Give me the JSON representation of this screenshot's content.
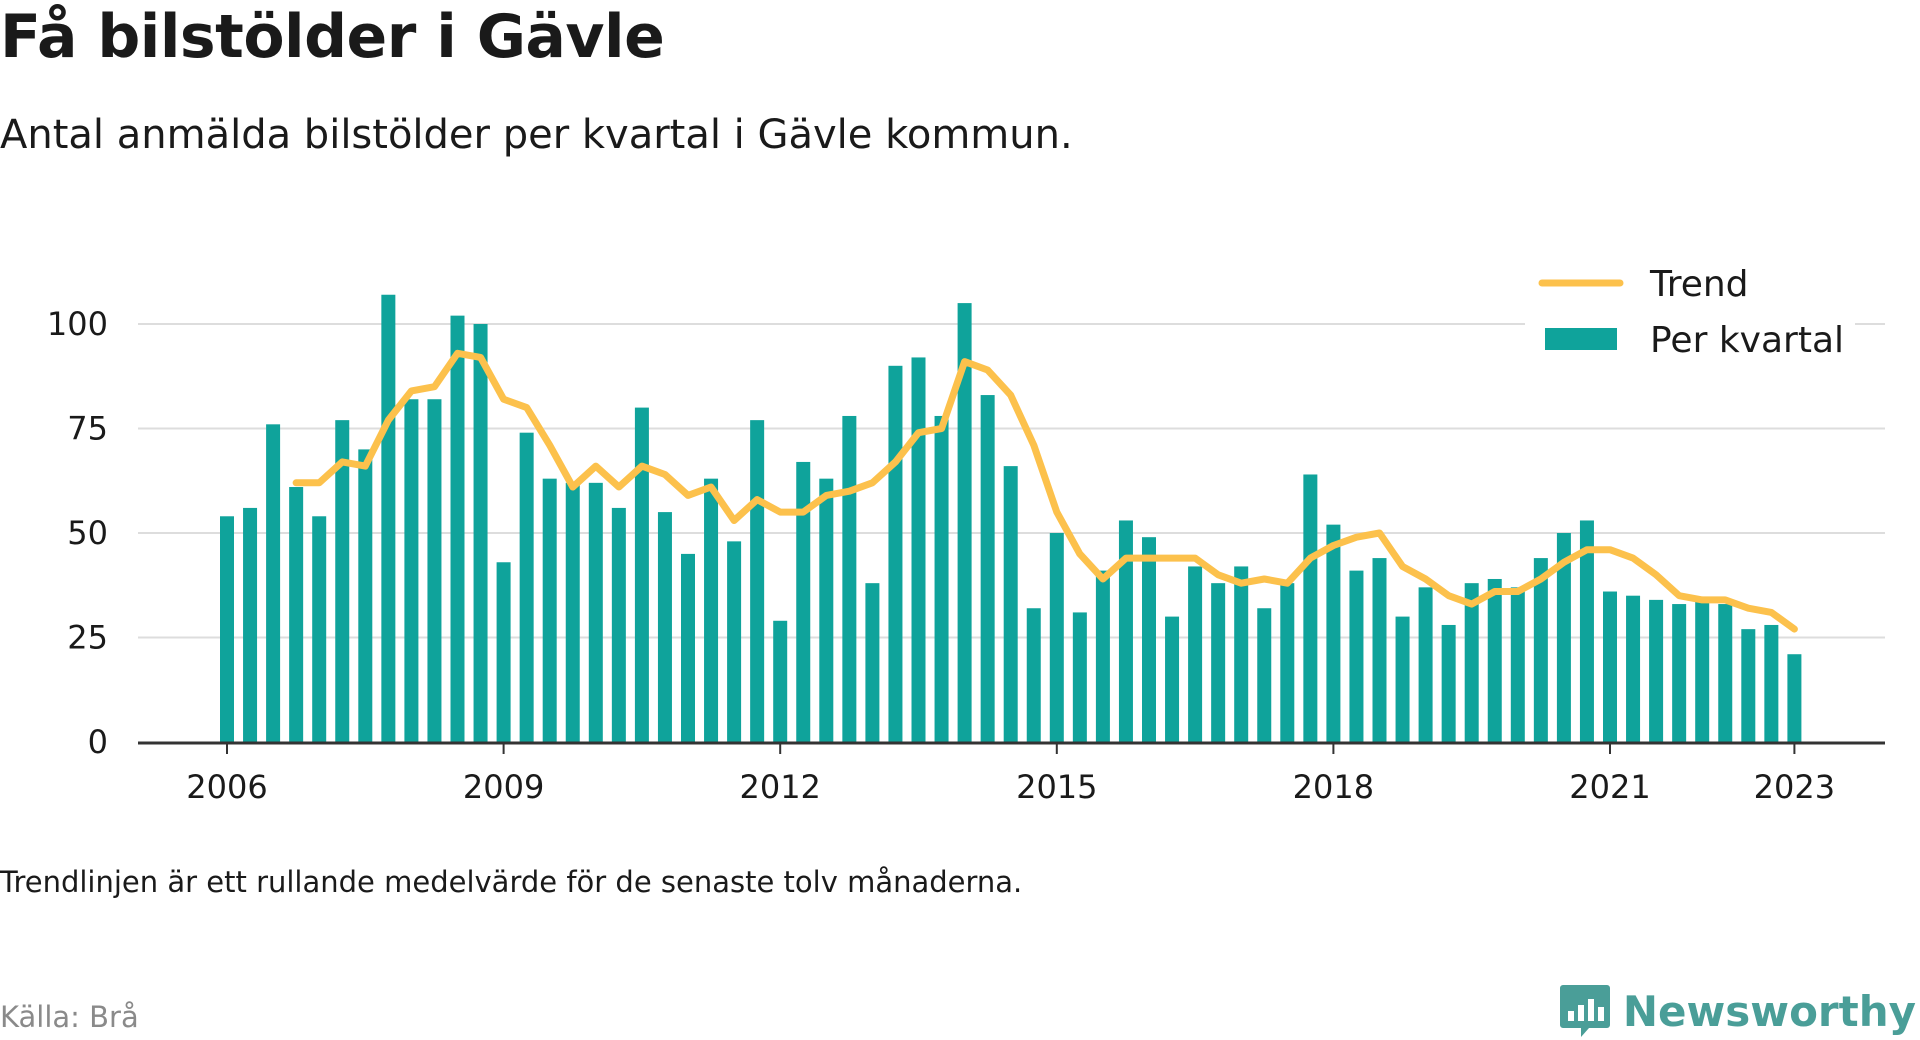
{
  "header": {
    "title": "Få bilstölder i Gävle",
    "subtitle": "Antal anmälda bilstölder per kvartal i Gävle kommun."
  },
  "footer": {
    "note": "Trendlinjen är ett rullande medelvärde för de senaste tolv månaderna.",
    "source": "Källa: Brå",
    "brand": "Newsworthy"
  },
  "colors": {
    "bar": "#0fa39b",
    "trend": "#fcc14c",
    "grid": "#dddddd",
    "axis": "#333333",
    "brand": "#4a9e98"
  },
  "chart_data": {
    "type": "bar",
    "x_start": "2006 Q1",
    "quarters_per_year": 4,
    "xticks": [
      "2006",
      "2009",
      "2012",
      "2015",
      "2018",
      "2021",
      "2023"
    ],
    "yticks": [
      "0",
      "25",
      "50",
      "75",
      "100"
    ],
    "ylim": [
      0,
      110
    ],
    "grid": true,
    "legend_position": "top-right",
    "series": [
      {
        "name": "Per kvartal",
        "type": "bar",
        "values": [
          54,
          56,
          76,
          61,
          54,
          77,
          70,
          107,
          82,
          82,
          102,
          100,
          43,
          74,
          63,
          62,
          62,
          56,
          80,
          55,
          45,
          63,
          48,
          77,
          29,
          67,
          63,
          78,
          38,
          90,
          92,
          78,
          105,
          83,
          66,
          32,
          50,
          31,
          41,
          53,
          49,
          30,
          42,
          38,
          42,
          32,
          38,
          64,
          52,
          41,
          44,
          30,
          37,
          28,
          38,
          39,
          37,
          44,
          50,
          53,
          36,
          35,
          34,
          33,
          34,
          33,
          27,
          28,
          21
        ]
      },
      {
        "name": "Trend",
        "type": "line",
        "start_index": 3,
        "values": [
          62,
          62,
          67,
          66,
          77,
          84,
          85,
          93,
          92,
          82,
          80,
          71,
          61,
          66,
          61,
          66,
          64,
          59,
          61,
          53,
          58,
          55,
          55,
          59,
          60,
          62,
          67,
          74,
          75,
          91,
          89,
          83,
          71,
          55,
          45,
          39,
          44,
          44,
          44,
          44,
          40,
          38,
          39,
          38,
          44,
          47,
          49,
          50,
          42,
          39,
          35,
          33,
          36,
          36,
          39,
          43,
          46,
          46,
          44,
          40,
          35,
          34,
          34,
          32,
          31,
          27
        ]
      }
    ]
  }
}
